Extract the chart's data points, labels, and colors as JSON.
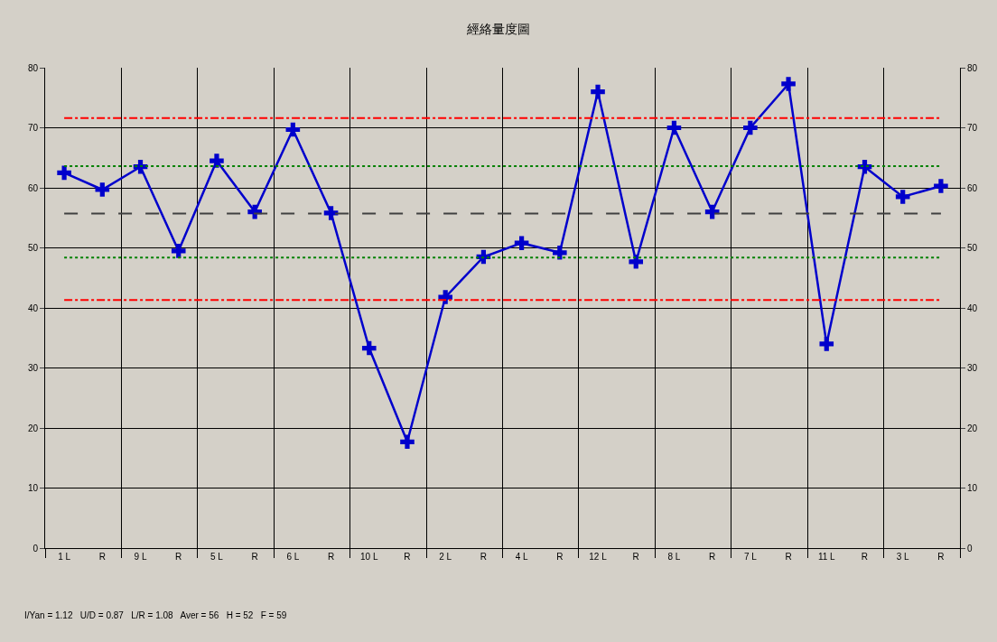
{
  "chart_data": {
    "type": "line",
    "title": "經絡量度圖",
    "categories": [
      "1 L",
      "R",
      "9 L",
      "R",
      "5 L",
      "R",
      "6 L",
      "R",
      "10 L",
      "R",
      "2 L",
      "R",
      "4 L",
      "R",
      "12 L",
      "R",
      "8 L",
      "R",
      "7 L",
      "R",
      "11 L",
      "R",
      "3 L",
      "R"
    ],
    "series": [
      {
        "color": "#0000cc",
        "values": [
          62.5,
          59.7,
          63.5,
          49.5,
          64.5,
          56,
          69.7,
          55.8,
          33.3,
          17.7,
          41.8,
          48.5,
          50.8,
          49.2,
          76,
          47.7,
          70,
          56,
          70,
          77.3,
          34,
          63.5,
          58.5,
          60.3
        ]
      }
    ],
    "ylim": [
      0,
      80
    ],
    "yticks": [
      0,
      10,
      20,
      30,
      40,
      50,
      60,
      70,
      80
    ],
    "y2lim": [
      0,
      80
    ],
    "y2ticks": [
      0,
      10,
      20,
      30,
      40,
      50,
      60,
      70,
      80
    ],
    "ref_lines": [
      {
        "axis": "y",
        "value": 71.6,
        "color": "#ff0000",
        "line_style": "dashdot"
      },
      {
        "axis": "y",
        "value": 63.6,
        "color": "#008000",
        "line_style": "dotted"
      },
      {
        "axis": "y",
        "value": 55.7,
        "color": "#404040",
        "line_style": "dashed"
      },
      {
        "axis": "y",
        "value": 48.4,
        "color": "#008000",
        "line_style": "dotted"
      },
      {
        "axis": "y",
        "value": 41.3,
        "color": "#ff0000",
        "line_style": "dashdot"
      }
    ],
    "annotations": [
      "I/Yan = 1.12   U/D = 0.87   L/R = 1.08   Aver = 56   H = 52   F = 59"
    ],
    "grid": true,
    "marker": "cross",
    "line_style": "solid"
  }
}
